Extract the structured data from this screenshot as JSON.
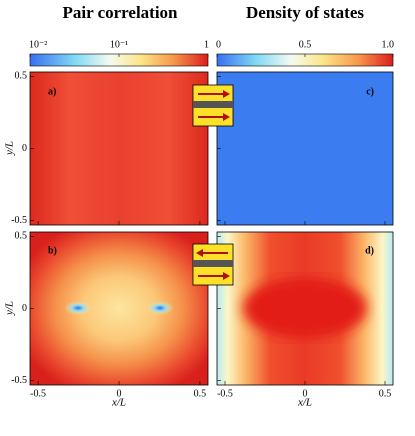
{
  "titles": [
    "Pair correlation",
    "Density of states"
  ],
  "colorbars": [
    {
      "scale": "log",
      "lim": [
        0.01,
        1
      ],
      "ticks": [
        {
          "value": 0.01,
          "label": "10⁻²"
        },
        {
          "value": 0.1,
          "label": "10⁻¹"
        },
        1
      ]
    },
    {
      "scale": "linear",
      "lim": [
        0,
        1
      ],
      "ticks": [
        0,
        0.5,
        {
          "value": 1,
          "label": "1.0"
        }
      ]
    }
  ],
  "panels": [
    {
      "label": "a)"
    },
    {
      "label": "b)"
    },
    {
      "label": "c)"
    },
    {
      "label": "d)"
    }
  ],
  "xlabel": "x/L",
  "ylabel": "y/L",
  "xlim": [
    -0.55,
    0.55
  ],
  "ylim": [
    -0.53,
    0.53
  ],
  "xticks": [
    -0.5,
    0,
    0.5
  ],
  "yticks": [
    -0.5,
    0,
    0.5
  ]
}
